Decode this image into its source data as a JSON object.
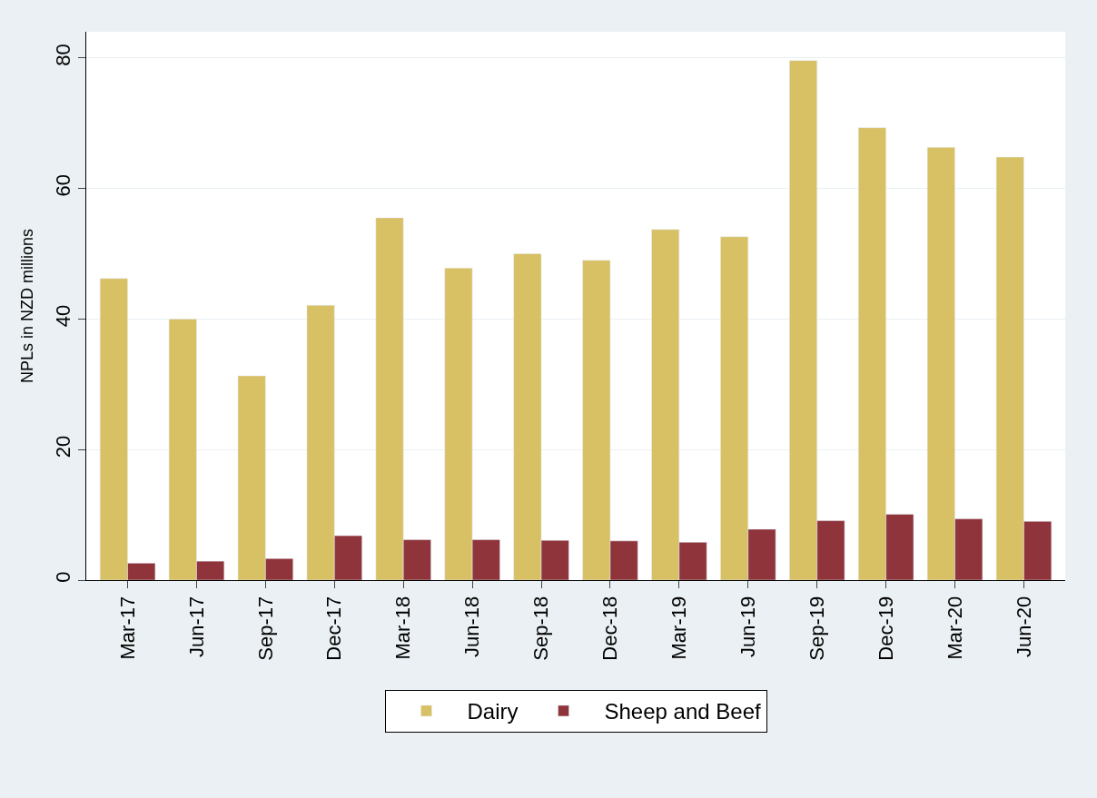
{
  "chart_data": {
    "type": "bar",
    "ylabel": "NPLs in NZD millions",
    "categories": [
      "Mar-17",
      "Jun-17",
      "Sep-17",
      "Dec-17",
      "Mar-18",
      "Jun-18",
      "Sep-18",
      "Dec-18",
      "Mar-19",
      "Jun-19",
      "Sep-19",
      "Dec-19",
      "Mar-20",
      "Jun-20"
    ],
    "series": [
      {
        "name": "Dairy",
        "color": "#d8c064",
        "values": [
          46.2,
          40.0,
          31.3,
          42.1,
          55.5,
          47.8,
          50.0,
          49.0,
          53.7,
          52.6,
          79.6,
          69.3,
          66.3,
          64.8
        ]
      },
      {
        "name": "Sheep and Beef",
        "color": "#8f343b",
        "values": [
          2.6,
          2.9,
          3.3,
          6.8,
          6.2,
          6.2,
          6.1,
          6.0,
          5.8,
          7.8,
          9.1,
          10.1,
          9.4,
          9.0
        ]
      }
    ],
    "ylim": [
      0,
      84
    ],
    "yticks": [
      0,
      20,
      40,
      60,
      80
    ],
    "grid": "y",
    "legend": "bottom"
  }
}
